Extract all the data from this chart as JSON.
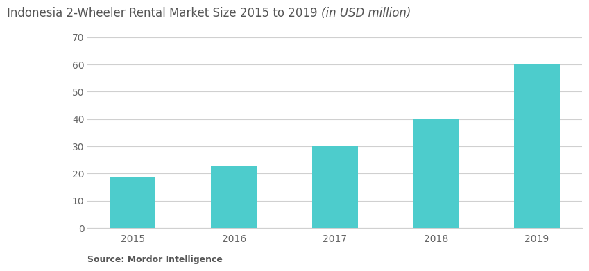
{
  "categories": [
    "2015",
    "2016",
    "2017",
    "2018",
    "2019"
  ],
  "values": [
    18.5,
    23,
    30,
    40,
    60
  ],
  "bar_color": "#4DCCCC",
  "title_regular": "Indonesia 2-Wheeler Rental Market Size 2015 to 2019 ",
  "title_italic": "(in USD million)",
  "ylim": [
    0,
    70
  ],
  "yticks": [
    0,
    10,
    20,
    30,
    40,
    50,
    60,
    70
  ],
  "background_color": "#ffffff",
  "grid_color": "#d0d0d0",
  "title_fontsize": 12,
  "tick_fontsize": 10,
  "source_text": "Source: Mordor Intelligence",
  "bar_width": 0.45
}
